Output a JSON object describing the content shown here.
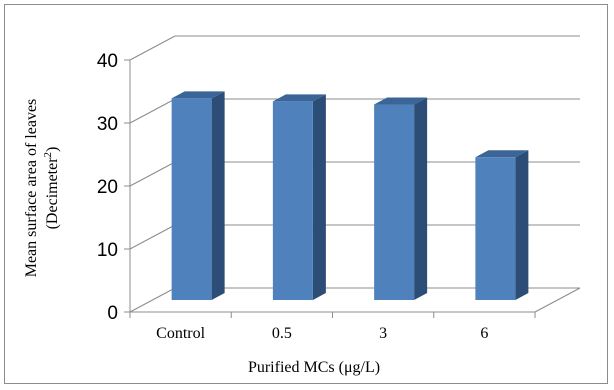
{
  "chart_data": {
    "type": "bar",
    "title": "",
    "categories": [
      "Control",
      "0.5",
      "3",
      "6"
    ],
    "values": [
      32.5,
      32,
      31.5,
      23
    ],
    "xlabel": "Purified MCs (μg/L)",
    "ylabel_line1": "Mean surface area of leaves",
    "ylabel_line2_main": "(Decimeter",
    "ylabel_line2_sup": "2",
    "ylabel_line2_end": ")",
    "ylim": [
      0,
      40
    ],
    "yticks": [
      "0",
      "10",
      "20",
      "30",
      "40"
    ],
    "grid": true,
    "style": "3d",
    "colors": {
      "bar_front": "#4f81bd",
      "bar_side": "#2c4d75",
      "bar_top": "#3a6596",
      "grid": "#8c8c8c"
    }
  }
}
